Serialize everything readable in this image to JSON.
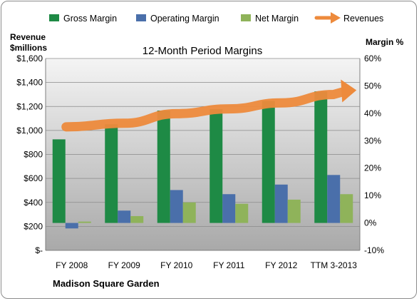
{
  "chart_data": {
    "type": "bar",
    "title": "12-Month Period Margins",
    "company_label": "Madison Square Garden",
    "left_axis_title": [
      "Revenue",
      "$millions"
    ],
    "right_axis_title": "Margin %",
    "categories": [
      "FY 2008",
      "FY 2009",
      "FY 2010",
      "FY 2011",
      "FY 2012",
      "TTM 3-2013"
    ],
    "left_axis": {
      "ylim": [
        0,
        1600
      ],
      "tick_labels": [
        "$-",
        "$200",
        "$400",
        "$600",
        "$800",
        "$1,000",
        "$1,200",
        "$1,400",
        "$1,600"
      ]
    },
    "right_axis": {
      "ylim": [
        -10,
        60
      ],
      "tick_labels": [
        "-10%",
        "0%",
        "10%",
        "20%",
        "30%",
        "40%",
        "50%",
        "60%"
      ]
    },
    "series": [
      {
        "name": "Gross Margin",
        "kind": "bar",
        "axis": "right",
        "color": "#1e8a45",
        "values": [
          30.5,
          36.0,
          41.0,
          41.5,
          44.5,
          48.0
        ]
      },
      {
        "name": "Operating Margin",
        "kind": "bar",
        "axis": "right",
        "color": "#4a6faa",
        "values": [
          -2.0,
          4.5,
          12.0,
          10.5,
          14.0,
          17.5
        ]
      },
      {
        "name": "Net Margin",
        "kind": "bar",
        "axis": "right",
        "color": "#8fb35a",
        "values": [
          0.5,
          2.5,
          7.5,
          7.0,
          8.5,
          10.5
        ]
      },
      {
        "name": "Revenues",
        "kind": "line",
        "axis": "left",
        "color": "#ed8a3c",
        "values": [
          1030,
          1060,
          1140,
          1180,
          1230,
          1300
        ]
      }
    ],
    "grid": true,
    "legend": "top"
  }
}
